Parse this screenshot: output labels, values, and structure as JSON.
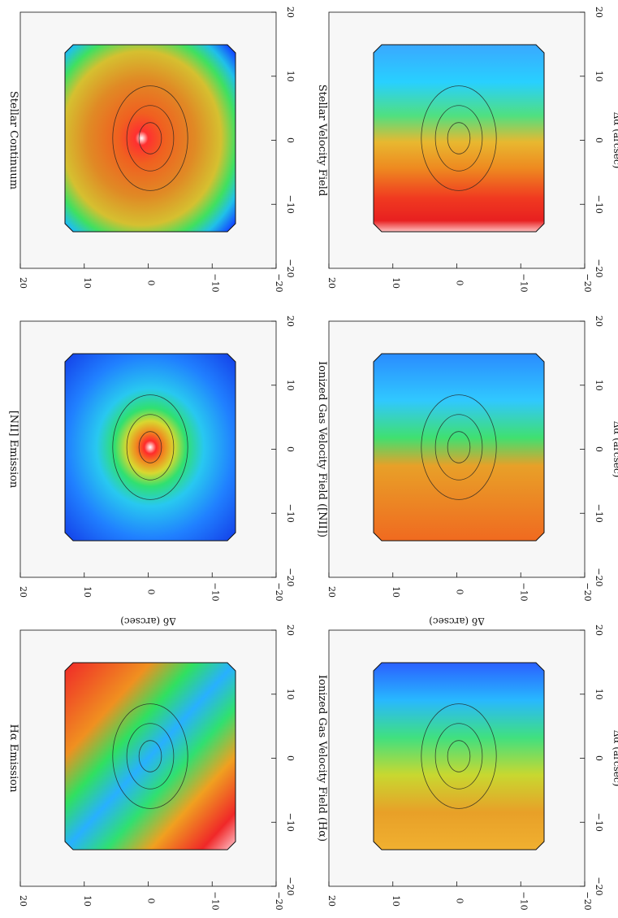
{
  "figure": {
    "orientation": "rotated 90 degrees",
    "panels": [
      {
        "title": "Stellar Continuum",
        "map": "continuum",
        "xlabel": "",
        "ylabel": ""
      },
      {
        "title": "Stellar Velocity Field",
        "map": "stellar_vel",
        "xlabel": "Δα (arcsec)",
        "ylabel": ""
      },
      {
        "title": "[NII] Emission",
        "map": "nii",
        "xlabel": "",
        "ylabel": "Δδ (arcsec)"
      },
      {
        "title": "Ionized Gas Velocity Field ([NII])",
        "map": "nii_vel",
        "xlabel": "Δα (arcsec)",
        "ylabel": "Δδ (arcsec)"
      },
      {
        "title": "Hα Emission",
        "map": "ha",
        "xlabel": "",
        "ylabel": "Δδ (arcsec)"
      },
      {
        "title": "Ionized Gas Velocity Field (Hα)",
        "map": "ha_vel",
        "xlabel": "Δα (arcsec)",
        "ylabel": "Δδ (arcsec)"
      }
    ],
    "axes": {
      "alpha_ticks": [
        "20",
        "10",
        "0",
        "−10",
        "−20"
      ],
      "delta_ticks": [
        "20",
        "10",
        "0",
        "−10",
        "−20"
      ],
      "alpha_range": [
        20,
        -20
      ],
      "delta_range": [
        -20,
        20
      ]
    }
  },
  "chart_data": [
    {
      "type": "heatmap",
      "title": "Stellar Continuum",
      "xlabel": "",
      "ylabel": "",
      "xlim": [
        20,
        -20
      ],
      "ylim": [
        -20,
        20
      ]
    },
    {
      "type": "heatmap",
      "title": "Stellar Velocity Field",
      "xlabel": "Δα (arcsec)",
      "ylabel": "",
      "xlim": [
        20,
        -20
      ],
      "ylim": [
        -20,
        20
      ]
    },
    {
      "type": "heatmap",
      "title": "[NII] Emission",
      "xlabel": "",
      "ylabel": "Δδ (arcsec)",
      "xlim": [
        20,
        -20
      ],
      "ylim": [
        -20,
        20
      ]
    },
    {
      "type": "heatmap",
      "title": "Ionized Gas Velocity Field ([NII])",
      "xlabel": "Δα (arcsec)",
      "ylabel": "Δδ (arcsec)",
      "xlim": [
        20,
        -20
      ],
      "ylim": [
        -20,
        20
      ]
    },
    {
      "type": "heatmap",
      "title": "Hα Emission",
      "xlabel": "",
      "ylabel": "Δδ (arcsec)",
      "xlim": [
        20,
        -20
      ],
      "ylim": [
        -20,
        20
      ]
    },
    {
      "type": "heatmap",
      "title": "Ionized Gas Velocity Field (Hα)",
      "xlabel": "Δα (arcsec)",
      "ylabel": "Δδ (arcsec)",
      "xlim": [
        20,
        -20
      ],
      "ylim": [
        -20,
        20
      ]
    }
  ]
}
